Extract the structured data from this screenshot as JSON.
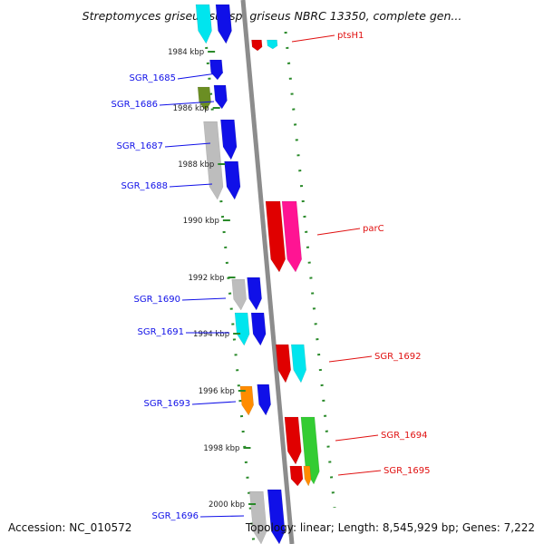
{
  "title": "Streptomyces griseus subsp. griseus NBRC 13350, complete gen...",
  "accession_label": "Accession: NC_010572",
  "topology_label": "Topology: linear; Length: 8,545,929 bp; Genes: 7,222",
  "kbp_ticks": [
    {
      "label": "1984 kbp",
      "kbp": 1984
    },
    {
      "label": "1986 kbp",
      "kbp": 1986
    },
    {
      "label": "1988 kbp",
      "kbp": 1988
    },
    {
      "label": "1990 kbp",
      "kbp": 1990
    },
    {
      "label": "1992 kbp",
      "kbp": 1992
    },
    {
      "label": "1994 kbp",
      "kbp": 1994
    },
    {
      "label": "1996 kbp",
      "kbp": 1996
    },
    {
      "label": "1998 kbp",
      "kbp": 1998
    },
    {
      "label": "2000 kbp",
      "kbp": 2000
    }
  ],
  "left_genes": [
    {
      "name": "SGR_1685",
      "color": "#1010e8"
    },
    {
      "name": "SGR_1686",
      "color": "#1010e8"
    },
    {
      "name": "SGR_1687",
      "color": "#1010e8"
    },
    {
      "name": "SGR_1688",
      "color": "#1010e8"
    },
    {
      "name": "SGR_1690",
      "color": "#1010e8"
    },
    {
      "name": "SGR_1691",
      "color": "#1010e8"
    },
    {
      "name": "SGR_1693",
      "color": "#1010e8"
    },
    {
      "name": "SGR_1696",
      "color": "#1010e8"
    }
  ],
  "right_genes": [
    {
      "name": "ptsH1",
      "color": "#e01010"
    },
    {
      "name": "parC",
      "color": "#e01010"
    },
    {
      "name": "SGR_1692",
      "color": "#e01010"
    },
    {
      "name": "SGR_1694",
      "color": "#e01010"
    },
    {
      "name": "SGR_1695",
      "color": "#e01010"
    }
  ],
  "colors": {
    "axis": "#8c8c8c",
    "dotted_guide": "#2a8a2a",
    "blue": "#1010e8",
    "cyan": "#00e5ee",
    "gray": "#bdbdbd",
    "olive": "#6b8e23",
    "red": "#e00000",
    "magenta": "#ff1493",
    "green": "#33cc33",
    "orange": "#ff8c00"
  }
}
